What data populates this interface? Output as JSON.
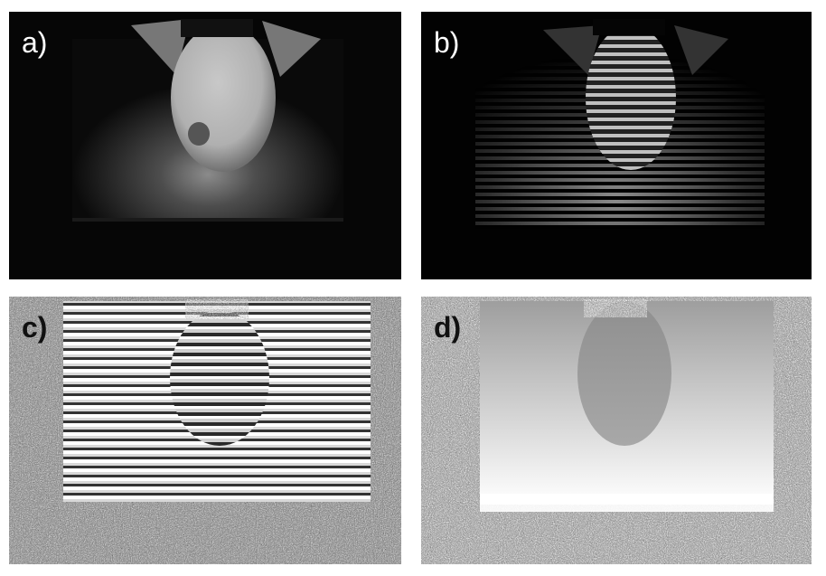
{
  "figure": {
    "panels": [
      {
        "id": "a",
        "label": "a)",
        "description_icon": "egg-photo-ambient"
      },
      {
        "id": "b",
        "label": "b)",
        "description_icon": "egg-fringe-projection"
      },
      {
        "id": "c",
        "label": "c)",
        "description_icon": "egg-wrapped-phase"
      },
      {
        "id": "d",
        "label": "d)",
        "description_icon": "egg-depth-map"
      }
    ]
  }
}
